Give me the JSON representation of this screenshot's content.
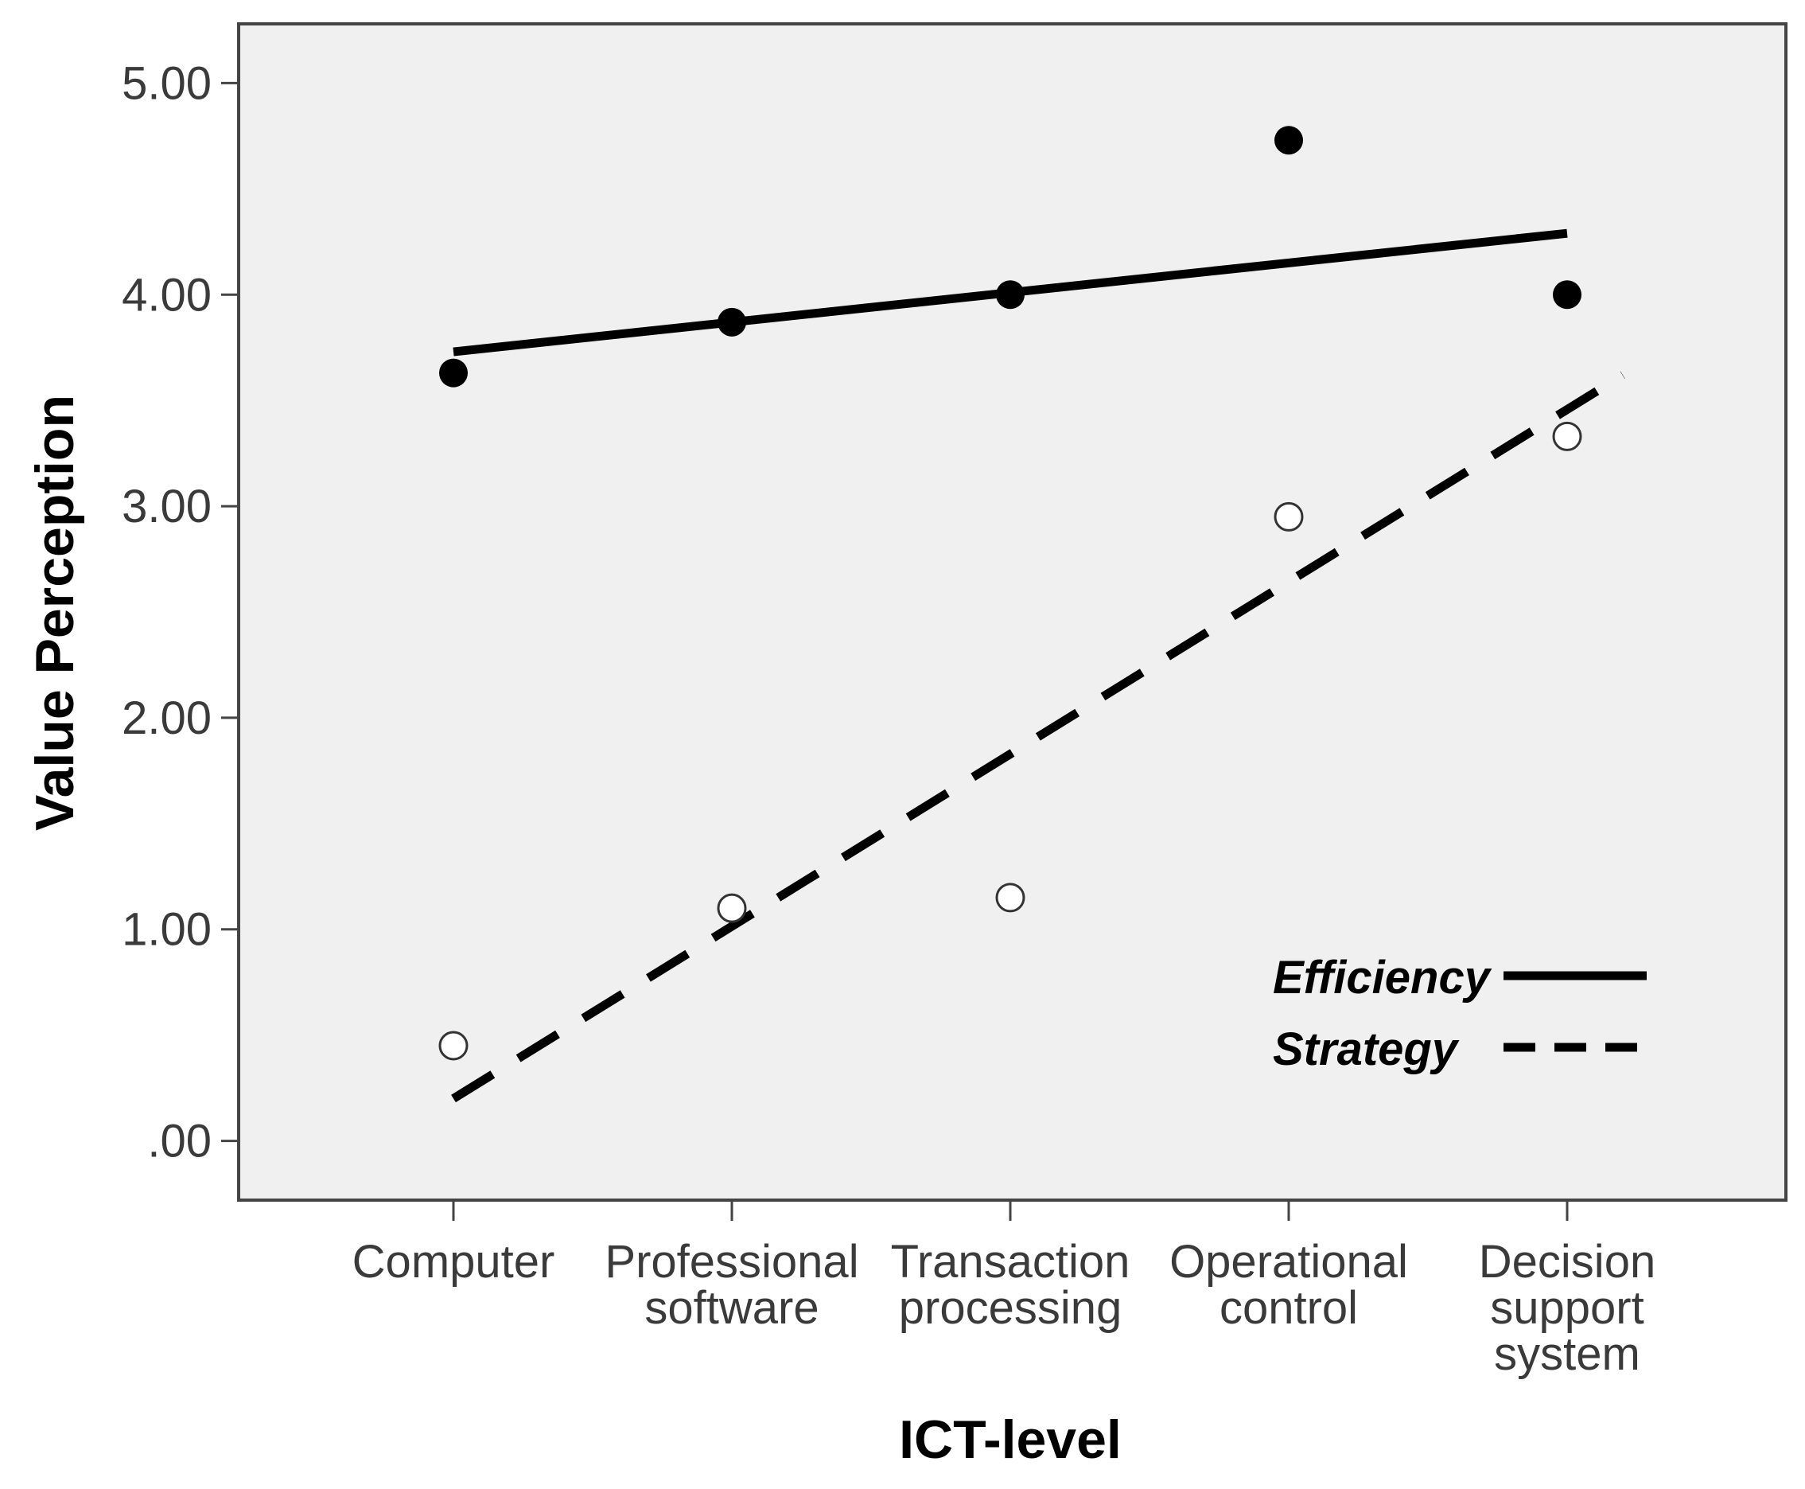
{
  "chart_data": {
    "type": "scatter",
    "title": "",
    "xlabel": "ICT-level",
    "ylabel": "Value Perception",
    "categories": [
      [
        "Computer"
      ],
      [
        "Professional",
        "software"
      ],
      [
        "Transaction",
        "processing"
      ],
      [
        "Operational",
        "control"
      ],
      [
        "Decision",
        "support",
        "system"
      ]
    ],
    "y_ticks": [
      ".00",
      "1.00",
      "2.00",
      "3.00",
      "4.00",
      "5.00"
    ],
    "ylim": [
      -0.28,
      5.28
    ],
    "grid": false,
    "legend_position": "bottom-right",
    "series": [
      {
        "name": "Efficiency",
        "marker": "filled-circle",
        "line_style": "solid",
        "values": [
          3.63,
          3.87,
          4.0,
          4.73,
          4.0
        ],
        "fit_line": {
          "x_start": 1,
          "x_end": 5,
          "y_start": 3.73,
          "y_end": 4.29
        }
      },
      {
        "name": "Strategy",
        "marker": "open-circle",
        "line_style": "dashed",
        "values": [
          0.45,
          1.1,
          1.15,
          2.95,
          3.33
        ],
        "fit_line": {
          "x_start": 1,
          "x_end": 5.2,
          "y_start": 0.2,
          "y_end": 3.62
        }
      }
    ],
    "colors": {
      "plot_background": "#f0f0f0",
      "frame": "#444444",
      "marks": "#000000",
      "open_marker_fill": "#ffffff"
    }
  }
}
